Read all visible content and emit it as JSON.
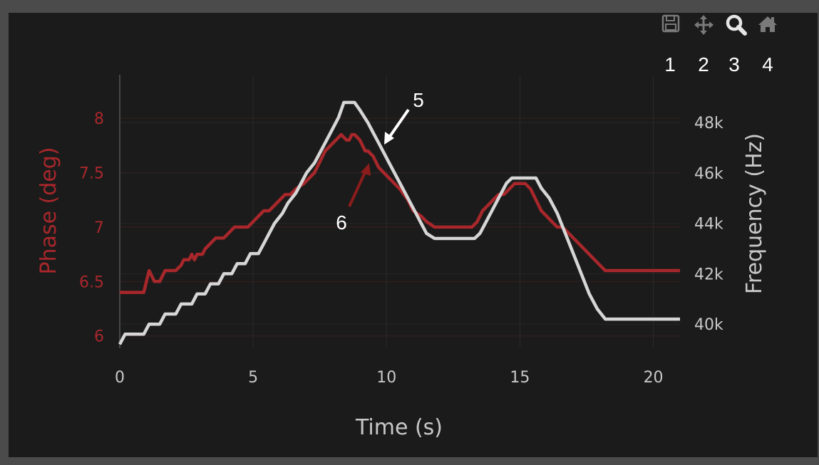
{
  "toolbar": {
    "buttons": [
      {
        "icon": "save-icon",
        "number": "1"
      },
      {
        "icon": "pan-icon",
        "number": "2"
      },
      {
        "icon": "zoom-icon",
        "number": "3"
      },
      {
        "icon": "home-icon",
        "number": "4"
      }
    ]
  },
  "callouts": {
    "frequency_trace": "5",
    "phase_trace": "6"
  },
  "colors": {
    "phase": "#a8272b",
    "frequency": "#d6d6d6",
    "background": "#1b1b1b",
    "frame": "#4b4b4b",
    "tick_text": "#c8c8c8",
    "phase_arrow": "#8a1c1c"
  },
  "chart_data": {
    "type": "line",
    "xlabel": "Time (s)",
    "ylabel_left": "Phase (deg)",
    "ylabel_right": "Frequency (Hz)",
    "xlim": [
      0,
      21
    ],
    "ylim_left": [
      5.9,
      8.4
    ],
    "ylim_right": [
      39100,
      49900
    ],
    "x_ticks": [
      {
        "value": 0,
        "label": "0"
      },
      {
        "value": 5,
        "label": "5"
      },
      {
        "value": 10,
        "label": "10"
      },
      {
        "value": 15,
        "label": "15"
      },
      {
        "value": 20,
        "label": "20"
      }
    ],
    "y_ticks_left": [
      {
        "value": 6,
        "label": "6"
      },
      {
        "value": 6.5,
        "label": "6.5"
      },
      {
        "value": 7,
        "label": "7"
      },
      {
        "value": 7.5,
        "label": "7.5"
      },
      {
        "value": 8,
        "label": "8"
      }
    ],
    "y_ticks_right": [
      {
        "value": 40000,
        "label": "40k"
      },
      {
        "value": 42000,
        "label": "42k"
      },
      {
        "value": 44000,
        "label": "44k"
      },
      {
        "value": 46000,
        "label": "46k"
      },
      {
        "value": 48000,
        "label": "48k"
      }
    ],
    "grid": true,
    "legend": "none",
    "series": [
      {
        "axis": "left",
        "x": [
          0,
          0.9,
          1.0,
          1.1,
          1.3,
          1.5,
          1.7,
          2.1,
          2.3,
          2.4,
          2.6,
          2.7,
          2.8,
          2.9,
          3.1,
          3.2,
          3.4,
          3.6,
          3.9,
          4.1,
          4.3,
          4.5,
          4.8,
          5.0,
          5.2,
          5.4,
          5.6,
          5.8,
          6.0,
          6.2,
          6.4,
          6.6,
          6.9,
          7.1,
          7.3,
          7.5,
          7.7,
          7.9,
          8.1,
          8.3,
          8.5,
          8.6,
          8.7,
          8.8,
          9.0,
          9.2,
          9.3,
          9.5,
          9.7,
          9.9,
          10.1,
          10.3,
          10.5,
          10.8,
          11.0,
          11.3,
          11.5,
          11.8,
          12.1,
          12.3,
          12.5,
          12.8,
          13.0,
          13.2,
          13.4,
          13.6,
          13.8,
          14.0,
          14.2,
          14.4,
          14.6,
          14.8,
          15.0,
          15.2,
          15.4,
          15.6,
          15.8,
          16.0,
          16.2,
          16.4,
          16.6,
          16.8,
          17.0,
          17.2,
          17.4,
          17.6,
          17.8,
          18.0,
          18.2,
          19.0,
          20.0,
          21.0
        ],
        "y": [
          6.4,
          6.4,
          6.5,
          6.6,
          6.5,
          6.5,
          6.6,
          6.6,
          6.65,
          6.7,
          6.7,
          6.75,
          6.7,
          6.75,
          6.75,
          6.8,
          6.85,
          6.9,
          6.9,
          6.95,
          7.0,
          7.0,
          7.0,
          7.05,
          7.1,
          7.15,
          7.15,
          7.2,
          7.25,
          7.3,
          7.3,
          7.35,
          7.4,
          7.45,
          7.5,
          7.6,
          7.7,
          7.75,
          7.8,
          7.85,
          7.8,
          7.8,
          7.85,
          7.85,
          7.8,
          7.7,
          7.7,
          7.65,
          7.55,
          7.5,
          7.45,
          7.4,
          7.35,
          7.25,
          7.15,
          7.1,
          7.05,
          7.0,
          7.0,
          7.0,
          7.0,
          7.0,
          7.0,
          7.0,
          7.05,
          7.15,
          7.2,
          7.25,
          7.3,
          7.3,
          7.35,
          7.4,
          7.4,
          7.4,
          7.35,
          7.25,
          7.15,
          7.1,
          7.05,
          7.0,
          7.0,
          6.95,
          6.9,
          6.85,
          6.8,
          6.75,
          6.7,
          6.65,
          6.6,
          6.6,
          6.6,
          6.6
        ]
      },
      {
        "axis": "right",
        "x": [
          0,
          0.2,
          0.9,
          1.1,
          1.5,
          1.7,
          2.1,
          2.3,
          2.7,
          2.9,
          3.2,
          3.4,
          3.7,
          3.9,
          4.2,
          4.4,
          4.7,
          4.9,
          5.2,
          5.4,
          5.6,
          5.8,
          6.1,
          6.3,
          6.6,
          6.8,
          7.0,
          7.3,
          7.6,
          7.9,
          8.2,
          8.4,
          8.5,
          8.8,
          9.0,
          9.3,
          9.5,
          9.7,
          9.9,
          10.1,
          10.3,
          10.5,
          10.7,
          10.9,
          11.1,
          11.3,
          11.5,
          11.8,
          12.0,
          12.2,
          12.4,
          12.6,
          12.8,
          13.0,
          13.3,
          13.5,
          13.7,
          13.9,
          14.1,
          14.3,
          14.5,
          14.7,
          15.0,
          15.3,
          15.6,
          15.8,
          16.1,
          16.4,
          16.7,
          17.0,
          17.3,
          17.6,
          17.9,
          18.2,
          19.0,
          20.0,
          21.0
        ],
        "y": [
          39200,
          39600,
          39600,
          40000,
          40000,
          40400,
          40400,
          40800,
          40800,
          41200,
          41200,
          41600,
          41600,
          42000,
          42000,
          42400,
          42400,
          42800,
          42800,
          43200,
          43600,
          44000,
          44400,
          44800,
          45200,
          45600,
          46000,
          46400,
          47000,
          47600,
          48200,
          48800,
          48800,
          48800,
          48500,
          48000,
          47600,
          47200,
          46800,
          46400,
          46000,
          45600,
          45200,
          44800,
          44400,
          44000,
          43600,
          43400,
          43400,
          43400,
          43400,
          43400,
          43400,
          43400,
          43400,
          43600,
          44000,
          44400,
          44800,
          45200,
          45600,
          45800,
          45800,
          45800,
          45800,
          45400,
          45000,
          44400,
          43600,
          42800,
          42000,
          41200,
          40600,
          40200,
          40200,
          40200,
          40200
        ]
      }
    ]
  }
}
